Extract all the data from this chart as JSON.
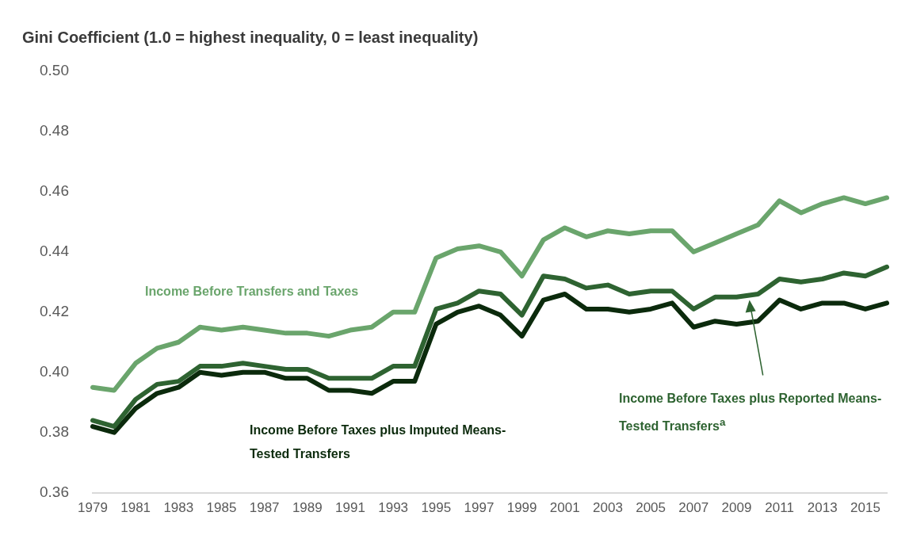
{
  "chart_data": {
    "type": "line",
    "title": "Gini Coefficient (1.0 = highest inequality, 0 = least inequality)",
    "categories": [
      "1979",
      null,
      "1981",
      null,
      "1983",
      null,
      "1985",
      null,
      "1987",
      null,
      "1989",
      null,
      "1991",
      null,
      "1993",
      null,
      "1995",
      null,
      "1997",
      null,
      "1999",
      null,
      "2001",
      null,
      "2003",
      null,
      "2005",
      null,
      "2007",
      null,
      "2009",
      null,
      "2011",
      null,
      "2013",
      null,
      "2015",
      null
    ],
    "series": [
      {
        "name": "Income Before Transfers and Taxes",
        "color": "#6aa56c",
        "values": [
          0.395,
          0.394,
          0.403,
          0.408,
          0.41,
          0.415,
          0.414,
          0.415,
          0.414,
          0.413,
          0.413,
          0.412,
          0.414,
          0.415,
          0.42,
          0.42,
          0.438,
          0.441,
          0.442,
          0.44,
          0.432,
          0.444,
          0.448,
          0.445,
          0.447,
          0.446,
          0.447,
          0.447,
          0.44,
          0.443,
          0.446,
          0.449,
          0.457,
          0.453,
          0.456,
          0.458,
          0.456,
          0.458
        ]
      },
      {
        "name": "Income Before Taxes plus Reported Means-Tested Transfers$^{a}$",
        "color": "#2e6331",
        "values": [
          0.384,
          0.382,
          0.391,
          0.396,
          0.397,
          0.402,
          0.402,
          0.403,
          0.402,
          0.401,
          0.401,
          0.398,
          0.398,
          0.398,
          0.402,
          0.402,
          0.421,
          0.423,
          0.427,
          0.426,
          0.419,
          0.432,
          0.431,
          0.428,
          0.429,
          0.426,
          0.427,
          0.427,
          0.421,
          0.425,
          0.425,
          0.426,
          0.431,
          0.43,
          0.431,
          0.433,
          0.432,
          0.435
        ]
      },
      {
        "name": "Income Before Taxes plus Imputed Means-Tested Transfers",
        "color": "#0b2a0c",
        "values": [
          0.382,
          0.38,
          0.388,
          0.393,
          0.395,
          0.4,
          0.399,
          0.4,
          0.4,
          0.398,
          0.398,
          0.394,
          0.394,
          0.393,
          0.397,
          0.397,
          0.416,
          0.42,
          0.422,
          0.419,
          0.412,
          0.424,
          0.426,
          0.421,
          0.421,
          0.42,
          0.421,
          0.423,
          0.415,
          0.417,
          0.416,
          0.417,
          0.424,
          0.421,
          0.423,
          0.423,
          0.421,
          0.423
        ]
      }
    ],
    "ylim": [
      0.36,
      0.5
    ],
    "yticks": [
      0.36,
      0.38,
      {
        "value": 0.4,
        "label": "0.40"
      },
      0.42,
      0.44,
      0.46,
      0.48,
      {
        "value": 0.5,
        "label": "0.50"
      }
    ],
    "grid": false,
    "legend": false,
    "marker": "none",
    "line_style": "solid"
  }
}
